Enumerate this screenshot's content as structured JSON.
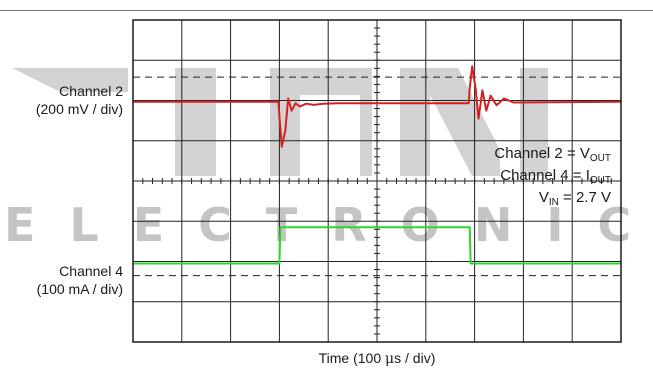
{
  "chart_data": {
    "type": "line",
    "x_divisions": 10,
    "y_divisions": 8,
    "xlabel": "Time (100 μs / div)",
    "xlabel_prefix": "Time (100 ",
    "xlabel_mu": "μ",
    "xlabel_suffix": "s / div)",
    "channel_labels": [
      {
        "name": "Channel 2",
        "scale": "(200 mV / div)"
      },
      {
        "name": "Channel 4",
        "scale": "(100 mA / div)"
      }
    ],
    "legend": [
      {
        "prefix": "Channel 2 = V",
        "sub": "OUT",
        "suffix": ""
      },
      {
        "prefix": "Channel 4 = I",
        "sub": "OUT",
        "suffix": ""
      },
      {
        "prefix": "V",
        "sub": "IN",
        "suffix": " = 2.7 V"
      }
    ],
    "series": [
      {
        "name": "Channel 2",
        "color": "#d42020",
        "x": [
          0,
          2.98,
          3.0,
          3.05,
          3.12,
          3.18,
          3.25,
          3.33,
          3.42,
          3.55,
          3.7,
          3.9,
          4.2,
          6.88,
          6.9,
          6.95,
          7.02,
          7.08,
          7.16,
          7.24,
          7.33,
          7.45,
          7.6,
          7.8,
          10
        ],
        "y": [
          5.97,
          5.97,
          5.6,
          4.85,
          5.25,
          6.05,
          5.75,
          5.93,
          5.85,
          5.92,
          5.89,
          5.92,
          5.93,
          5.93,
          6.3,
          6.85,
          6.3,
          5.55,
          6.25,
          5.75,
          6.12,
          5.88,
          6.05,
          5.95,
          5.97
        ]
      },
      {
        "name": "Channel 4",
        "color": "#2fd42f",
        "x": [
          0,
          3.0,
          3.02,
          6.9,
          6.92,
          10
        ],
        "y": [
          1.95,
          1.95,
          2.85,
          2.85,
          1.95,
          1.95
        ]
      }
    ],
    "reference_lines_y": [
      6.58,
      1.65
    ],
    "ylim": [
      0,
      8
    ],
    "xlim": [
      0,
      10
    ],
    "grid": true,
    "watermark": "ELECTRONIC",
    "watermark_color": "#c4c4c4"
  }
}
